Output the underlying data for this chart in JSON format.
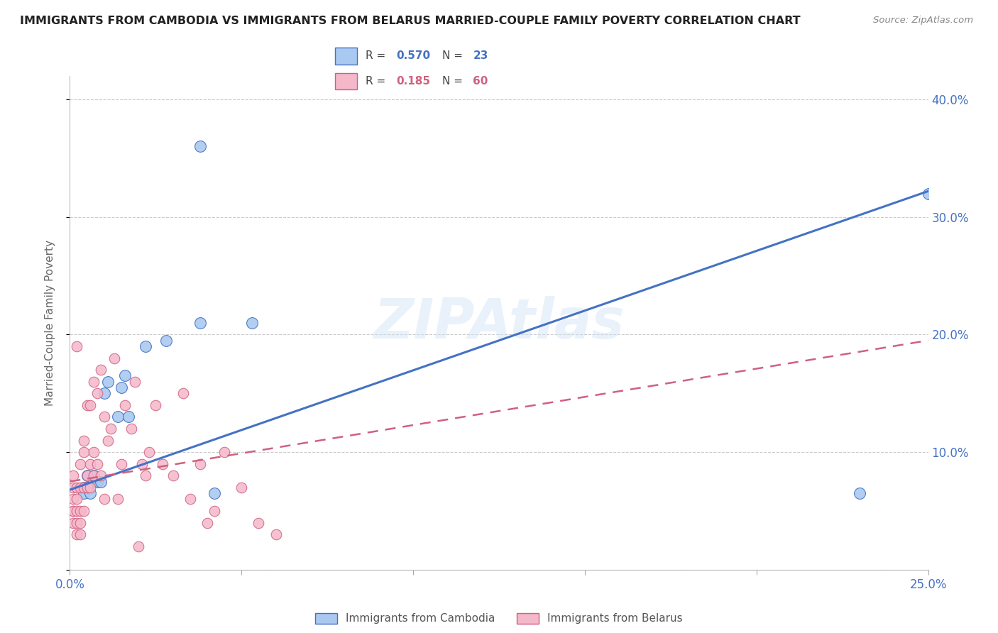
{
  "title": "IMMIGRANTS FROM CAMBODIA VS IMMIGRANTS FROM BELARUS MARRIED-COUPLE FAMILY POVERTY CORRELATION CHART",
  "source": "Source: ZipAtlas.com",
  "ylabel": "Married-Couple Family Poverty",
  "xlim": [
    0.0,
    0.25
  ],
  "ylim": [
    0.0,
    0.42
  ],
  "xticks": [
    0.0,
    0.05,
    0.1,
    0.15,
    0.2,
    0.25
  ],
  "yticks": [
    0.1,
    0.2,
    0.3,
    0.4
  ],
  "color_cambodia_face": "#aac9f0",
  "color_cambodia_edge": "#4472C4",
  "color_belarus_face": "#f5b8cb",
  "color_belarus_edge": "#d06080",
  "color_line_cambodia": "#4472C4",
  "color_line_belarus": "#d06080",
  "color_axis_text": "#4472C4",
  "legend_R_cambodia": "0.570",
  "legend_N_cambodia": "23",
  "legend_R_belarus": "0.185",
  "legend_N_belarus": "60",
  "cambodia_x": [
    0.004,
    0.004,
    0.005,
    0.005,
    0.006,
    0.007,
    0.007,
    0.008,
    0.009,
    0.01,
    0.011,
    0.014,
    0.015,
    0.016,
    0.017,
    0.022,
    0.028,
    0.038,
    0.042,
    0.053,
    0.038,
    0.23,
    0.25
  ],
  "cambodia_y": [
    0.07,
    0.065,
    0.07,
    0.08,
    0.065,
    0.075,
    0.08,
    0.075,
    0.075,
    0.15,
    0.16,
    0.13,
    0.155,
    0.165,
    0.13,
    0.19,
    0.195,
    0.21,
    0.065,
    0.21,
    0.36,
    0.065,
    0.32
  ],
  "belarus_x": [
    0.001,
    0.001,
    0.001,
    0.001,
    0.001,
    0.001,
    0.002,
    0.002,
    0.002,
    0.002,
    0.002,
    0.002,
    0.003,
    0.003,
    0.003,
    0.003,
    0.003,
    0.004,
    0.004,
    0.004,
    0.004,
    0.005,
    0.005,
    0.005,
    0.006,
    0.006,
    0.006,
    0.007,
    0.007,
    0.007,
    0.008,
    0.008,
    0.009,
    0.009,
    0.01,
    0.01,
    0.011,
    0.012,
    0.013,
    0.014,
    0.015,
    0.016,
    0.018,
    0.019,
    0.02,
    0.021,
    0.022,
    0.023,
    0.025,
    0.027,
    0.03,
    0.033,
    0.035,
    0.038,
    0.04,
    0.042,
    0.045,
    0.05,
    0.055,
    0.06
  ],
  "belarus_y": [
    0.04,
    0.05,
    0.05,
    0.06,
    0.07,
    0.08,
    0.03,
    0.04,
    0.05,
    0.06,
    0.07,
    0.19,
    0.03,
    0.04,
    0.05,
    0.07,
    0.09,
    0.05,
    0.07,
    0.1,
    0.11,
    0.07,
    0.08,
    0.14,
    0.07,
    0.09,
    0.14,
    0.08,
    0.1,
    0.16,
    0.09,
    0.15,
    0.08,
    0.17,
    0.06,
    0.13,
    0.11,
    0.12,
    0.18,
    0.06,
    0.09,
    0.14,
    0.12,
    0.16,
    0.02,
    0.09,
    0.08,
    0.1,
    0.14,
    0.09,
    0.08,
    0.15,
    0.06,
    0.09,
    0.04,
    0.05,
    0.1,
    0.07,
    0.04,
    0.03
  ],
  "trendline_cambodia_x0": 0.0,
  "trendline_cambodia_y0": 0.068,
  "trendline_cambodia_x1": 0.25,
  "trendline_cambodia_y1": 0.322,
  "trendline_belarus_x0": 0.0,
  "trendline_belarus_y0": 0.075,
  "trendline_belarus_x1": 0.25,
  "trendline_belarus_y1": 0.195
}
